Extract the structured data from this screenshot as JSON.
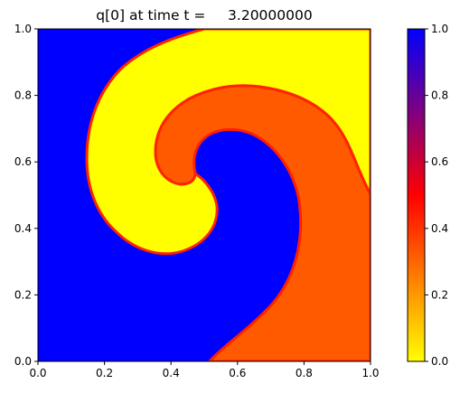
{
  "chart_data": {
    "type": "heatmap",
    "title": "q[0] at time t =     3.20000000",
    "xlabel": "",
    "ylabel": "",
    "xlim": [
      0.0,
      1.0
    ],
    "ylim": [
      0.0,
      1.0
    ],
    "x_ticks": [
      "0.0",
      "0.2",
      "0.4",
      "0.6",
      "0.8",
      "1.0"
    ],
    "y_ticks": [
      "0.0",
      "0.2",
      "0.4",
      "0.6",
      "0.8",
      "1.0"
    ],
    "grid": false,
    "colorbar": {
      "range": [
        0.0,
        1.0
      ],
      "ticks": [
        "0.0",
        "0.2",
        "0.4",
        "0.6",
        "0.8",
        "1.0"
      ],
      "colors": [
        {
          "value": 0.0,
          "color": "#ffff00"
        },
        {
          "value": 0.25,
          "color": "#ff7f00"
        },
        {
          "value": 0.5,
          "color": "#ff0000"
        },
        {
          "value": 0.75,
          "color": "#800080"
        },
        {
          "value": 1.0,
          "color": "#0000ff"
        }
      ]
    },
    "field_description_regions": [
      {
        "region": "outer-left and centre vortex core",
        "value": 1.0
      },
      {
        "region": "yellow spiral arm and top-right",
        "value": 0.0
      },
      {
        "region": "orange spiral arm and bottom-right",
        "value": 0.3
      }
    ],
    "colors": {
      "blue": "#0000ff",
      "yellow": "#ffff00",
      "orange": "#ff5a00",
      "edge_red": "#ff0000",
      "edge_purple": "#7a0085"
    }
  }
}
